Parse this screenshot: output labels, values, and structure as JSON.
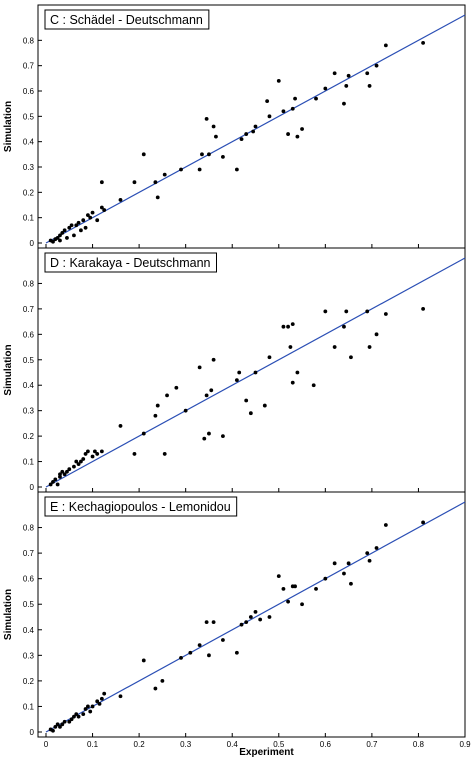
{
  "figure": {
    "xlabel": "Experiment",
    "ylabel": "Simulation",
    "colors": {
      "points": "#000000",
      "line": "#2b4fb5",
      "frame": "#000000",
      "label_box": "#ffffff"
    }
  },
  "chart_data": [
    {
      "type": "scatter",
      "title": "C : Schädel - Deutschmann",
      "xlabel": "",
      "ylabel": "Simulation",
      "xlim": [
        0,
        0.9
      ],
      "ylim": [
        0,
        0.9
      ],
      "xticks": [],
      "yticks": [
        "0",
        "0.1",
        "0.2",
        "0.3",
        "0.4",
        "0.5",
        "0.6",
        "0.7",
        "0.8"
      ],
      "reference_line": {
        "from": [
          0,
          0
        ],
        "to": [
          0.9,
          0.9
        ]
      },
      "points": [
        [
          0.01,
          0.01
        ],
        [
          0.015,
          0.005
        ],
        [
          0.02,
          0.015
        ],
        [
          0.025,
          0.02
        ],
        [
          0.03,
          0.03
        ],
        [
          0.03,
          0.01
        ],
        [
          0.035,
          0.04
        ],
        [
          0.04,
          0.05
        ],
        [
          0.045,
          0.02
        ],
        [
          0.05,
          0.06
        ],
        [
          0.055,
          0.07
        ],
        [
          0.06,
          0.03
        ],
        [
          0.065,
          0.07
        ],
        [
          0.07,
          0.08
        ],
        [
          0.075,
          0.05
        ],
        [
          0.08,
          0.09
        ],
        [
          0.085,
          0.06
        ],
        [
          0.09,
          0.11
        ],
        [
          0.095,
          0.1
        ],
        [
          0.1,
          0.12
        ],
        [
          0.11,
          0.09
        ],
        [
          0.12,
          0.14
        ],
        [
          0.125,
          0.13
        ],
        [
          0.12,
          0.24
        ],
        [
          0.16,
          0.17
        ],
        [
          0.19,
          0.24
        ],
        [
          0.21,
          0.35
        ],
        [
          0.235,
          0.24
        ],
        [
          0.24,
          0.18
        ],
        [
          0.255,
          0.27
        ],
        [
          0.29,
          0.29
        ],
        [
          0.33,
          0.29
        ],
        [
          0.335,
          0.35
        ],
        [
          0.345,
          0.49
        ],
        [
          0.35,
          0.35
        ],
        [
          0.36,
          0.46
        ],
        [
          0.365,
          0.42
        ],
        [
          0.38,
          0.34
        ],
        [
          0.41,
          0.29
        ],
        [
          0.42,
          0.41
        ],
        [
          0.43,
          0.43
        ],
        [
          0.445,
          0.44
        ],
        [
          0.45,
          0.46
        ],
        [
          0.475,
          0.56
        ],
        [
          0.48,
          0.5
        ],
        [
          0.5,
          0.64
        ],
        [
          0.51,
          0.52
        ],
        [
          0.52,
          0.43
        ],
        [
          0.53,
          0.53
        ],
        [
          0.535,
          0.57
        ],
        [
          0.54,
          0.42
        ],
        [
          0.55,
          0.45
        ],
        [
          0.58,
          0.57
        ],
        [
          0.6,
          0.61
        ],
        [
          0.62,
          0.67
        ],
        [
          0.64,
          0.55
        ],
        [
          0.645,
          0.62
        ],
        [
          0.65,
          0.66
        ],
        [
          0.69,
          0.67
        ],
        [
          0.695,
          0.62
        ],
        [
          0.71,
          0.7
        ],
        [
          0.73,
          0.78
        ],
        [
          0.81,
          0.79
        ]
      ]
    },
    {
      "type": "scatter",
      "title": "D : Karakaya - Deutschmann",
      "xlabel": "",
      "ylabel": "Simulation",
      "xlim": [
        0,
        0.9
      ],
      "ylim": [
        0,
        0.9
      ],
      "xticks": [],
      "yticks": [
        "0",
        "0.1",
        "0.2",
        "0.3",
        "0.4",
        "0.5",
        "0.6",
        "0.7",
        "0.8"
      ],
      "reference_line": {
        "from": [
          0,
          0
        ],
        "to": [
          0.9,
          0.9
        ]
      },
      "points": [
        [
          0.01,
          0.01
        ],
        [
          0.015,
          0.02
        ],
        [
          0.02,
          0.03
        ],
        [
          0.025,
          0.01
        ],
        [
          0.03,
          0.04
        ],
        [
          0.03,
          0.05
        ],
        [
          0.035,
          0.06
        ],
        [
          0.04,
          0.05
        ],
        [
          0.045,
          0.06
        ],
        [
          0.05,
          0.07
        ],
        [
          0.06,
          0.08
        ],
        [
          0.065,
          0.1
        ],
        [
          0.07,
          0.09
        ],
        [
          0.075,
          0.1
        ],
        [
          0.08,
          0.11
        ],
        [
          0.085,
          0.13
        ],
        [
          0.09,
          0.14
        ],
        [
          0.1,
          0.12
        ],
        [
          0.105,
          0.14
        ],
        [
          0.11,
          0.13
        ],
        [
          0.12,
          0.14
        ],
        [
          0.16,
          0.24
        ],
        [
          0.19,
          0.13
        ],
        [
          0.21,
          0.21
        ],
        [
          0.235,
          0.28
        ],
        [
          0.24,
          0.32
        ],
        [
          0.255,
          0.13
        ],
        [
          0.26,
          0.36
        ],
        [
          0.28,
          0.39
        ],
        [
          0.3,
          0.3
        ],
        [
          0.33,
          0.47
        ],
        [
          0.34,
          0.19
        ],
        [
          0.345,
          0.36
        ],
        [
          0.35,
          0.21
        ],
        [
          0.355,
          0.38
        ],
        [
          0.36,
          0.5
        ],
        [
          0.38,
          0.2
        ],
        [
          0.41,
          0.42
        ],
        [
          0.415,
          0.45
        ],
        [
          0.43,
          0.34
        ],
        [
          0.44,
          0.29
        ],
        [
          0.45,
          0.45
        ],
        [
          0.47,
          0.32
        ],
        [
          0.48,
          0.51
        ],
        [
          0.51,
          0.63
        ],
        [
          0.52,
          0.63
        ],
        [
          0.525,
          0.55
        ],
        [
          0.53,
          0.64
        ],
        [
          0.53,
          0.41
        ],
        [
          0.54,
          0.45
        ],
        [
          0.575,
          0.4
        ],
        [
          0.6,
          0.69
        ],
        [
          0.62,
          0.55
        ],
        [
          0.64,
          0.63
        ],
        [
          0.645,
          0.69
        ],
        [
          0.655,
          0.51
        ],
        [
          0.69,
          0.69
        ],
        [
          0.695,
          0.55
        ],
        [
          0.71,
          0.6
        ],
        [
          0.73,
          0.68
        ],
        [
          0.81,
          0.7
        ]
      ]
    },
    {
      "type": "scatter",
      "title": "E : Kechagiopoulos - Lemonidou",
      "xlabel": "Experiment",
      "ylabel": "Simulation",
      "xlim": [
        0,
        0.9
      ],
      "ylim": [
        0,
        0.9
      ],
      "xticks": [
        "0",
        "0.1",
        "0.2",
        "0.3",
        "0.4",
        "0.5",
        "0.6",
        "0.7",
        "0.8",
        "0.9"
      ],
      "yticks": [
        "0",
        "0.1",
        "0.2",
        "0.3",
        "0.4",
        "0.5",
        "0.6",
        "0.7",
        "0.8"
      ],
      "reference_line": {
        "from": [
          0,
          0
        ],
        "to": [
          0.9,
          0.9
        ]
      },
      "points": [
        [
          0.01,
          0.01
        ],
        [
          0.015,
          0.005
        ],
        [
          0.02,
          0.02
        ],
        [
          0.025,
          0.03
        ],
        [
          0.03,
          0.02
        ],
        [
          0.035,
          0.03
        ],
        [
          0.04,
          0.04
        ],
        [
          0.05,
          0.04
        ],
        [
          0.055,
          0.05
        ],
        [
          0.06,
          0.06
        ],
        [
          0.065,
          0.07
        ],
        [
          0.07,
          0.06
        ],
        [
          0.08,
          0.07
        ],
        [
          0.085,
          0.09
        ],
        [
          0.09,
          0.1
        ],
        [
          0.095,
          0.08
        ],
        [
          0.1,
          0.1
        ],
        [
          0.11,
          0.12
        ],
        [
          0.115,
          0.11
        ],
        [
          0.12,
          0.13
        ],
        [
          0.125,
          0.15
        ],
        [
          0.16,
          0.14
        ],
        [
          0.21,
          0.28
        ],
        [
          0.235,
          0.17
        ],
        [
          0.25,
          0.2
        ],
        [
          0.29,
          0.29
        ],
        [
          0.31,
          0.31
        ],
        [
          0.33,
          0.34
        ],
        [
          0.345,
          0.43
        ],
        [
          0.35,
          0.3
        ],
        [
          0.36,
          0.43
        ],
        [
          0.38,
          0.36
        ],
        [
          0.41,
          0.31
        ],
        [
          0.42,
          0.42
        ],
        [
          0.43,
          0.43
        ],
        [
          0.44,
          0.45
        ],
        [
          0.45,
          0.47
        ],
        [
          0.46,
          0.44
        ],
        [
          0.48,
          0.45
        ],
        [
          0.5,
          0.61
        ],
        [
          0.51,
          0.56
        ],
        [
          0.52,
          0.51
        ],
        [
          0.53,
          0.57
        ],
        [
          0.535,
          0.57
        ],
        [
          0.55,
          0.5
        ],
        [
          0.58,
          0.56
        ],
        [
          0.6,
          0.6
        ],
        [
          0.62,
          0.66
        ],
        [
          0.64,
          0.62
        ],
        [
          0.65,
          0.66
        ],
        [
          0.655,
          0.58
        ],
        [
          0.69,
          0.7
        ],
        [
          0.695,
          0.67
        ],
        [
          0.71,
          0.72
        ],
        [
          0.73,
          0.81
        ],
        [
          0.81,
          0.82
        ]
      ]
    }
  ]
}
